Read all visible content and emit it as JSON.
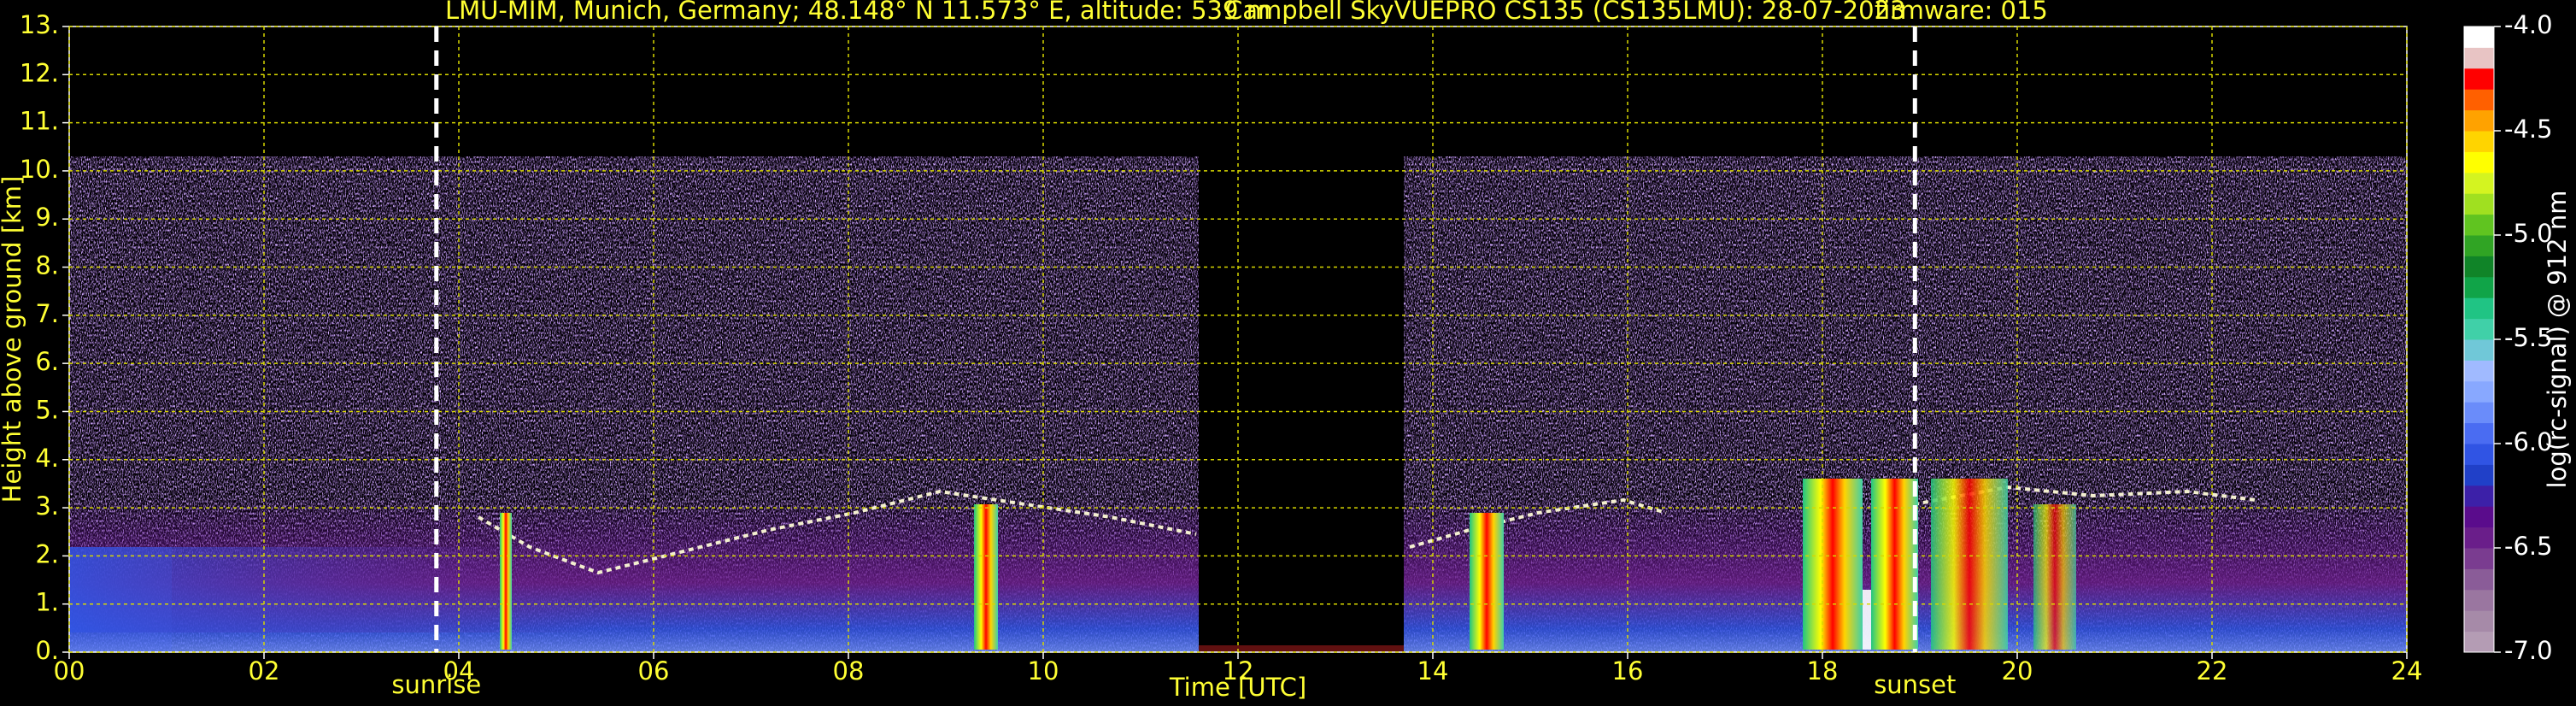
{
  "chart_data": {
    "type": "heatmap",
    "title": [
      "LMU-MIM, Munich, Germany; 48.148° N 11.573° E, altitude: 539 m",
      "Campbell SkyVUEPRO CS135 (CS135LMU): 28-07-2023",
      "firmware: 015"
    ],
    "x_label": "Time [UTC]",
    "y_label": "Height above ground [km]",
    "xlim": [
      0,
      24
    ],
    "xticks": [
      {
        "value": 0,
        "label": "00"
      },
      {
        "value": 2,
        "label": "02"
      },
      {
        "value": 4,
        "label": "04"
      },
      {
        "value": 6,
        "label": "06"
      },
      {
        "value": 8,
        "label": "08"
      },
      {
        "value": 10,
        "label": "10"
      },
      12,
      14,
      16,
      18,
      20,
      22,
      24
    ],
    "ylim": [
      0,
      13
    ],
    "yticks": [
      {
        "value": 0,
        "label": "0."
      },
      {
        "value": 1,
        "label": "1."
      },
      {
        "value": 2,
        "label": "2."
      },
      {
        "value": 3,
        "label": "3."
      },
      {
        "value": 4,
        "label": "4."
      },
      {
        "value": 5,
        "label": "5."
      },
      {
        "value": 6,
        "label": "6."
      },
      {
        "value": 7,
        "label": "7."
      },
      {
        "value": 8,
        "label": "8."
      },
      {
        "value": 9,
        "label": "9."
      },
      {
        "value": 10,
        "label": "10."
      },
      {
        "value": 11,
        "label": "11."
      },
      {
        "value": 12,
        "label": "12."
      },
      {
        "value": 13,
        "label": "13."
      }
    ],
    "grid": true,
    "grid_color": "#d8d800",
    "annotations": [
      {
        "label": "sunrise",
        "x": 3.77
      },
      {
        "label": "sunset",
        "x": 18.95
      }
    ],
    "colorbar": {
      "label": "log(rc-signal) @ 912 nm",
      "lim": [
        -7,
        -4
      ],
      "ticks": [
        {
          "value": -7,
          "label": "-7.0"
        },
        {
          "value": -6.5,
          "label": "-6.5"
        },
        {
          "value": -6,
          "label": "-6.0"
        },
        {
          "value": -5.5,
          "label": "-5.5"
        },
        {
          "value": -5,
          "label": "-5.0"
        },
        {
          "value": -4.5,
          "label": "-4.5"
        },
        {
          "value": -4,
          "label": "-4.0"
        }
      ],
      "colors": [
        "#b49cb4",
        "#a68aa8",
        "#9a76a0",
        "#8a5c98",
        "#7a3c90",
        "#6a1e8a",
        "#5a0c8c",
        "#3c20a8",
        "#2040c8",
        "#3054e4",
        "#4a6cf2",
        "#6a8cfa",
        "#88a8ff",
        "#a0baff",
        "#70c8d8",
        "#40d0a8",
        "#20c484",
        "#10a448",
        "#108428",
        "#30a424",
        "#60c420",
        "#a0e020",
        "#d4f420",
        "#ffff00",
        "#ffd400",
        "#ffa200",
        "#ff6000",
        "#ff0000",
        "#e8c4c4",
        "#ffffff"
      ]
    }
  }
}
